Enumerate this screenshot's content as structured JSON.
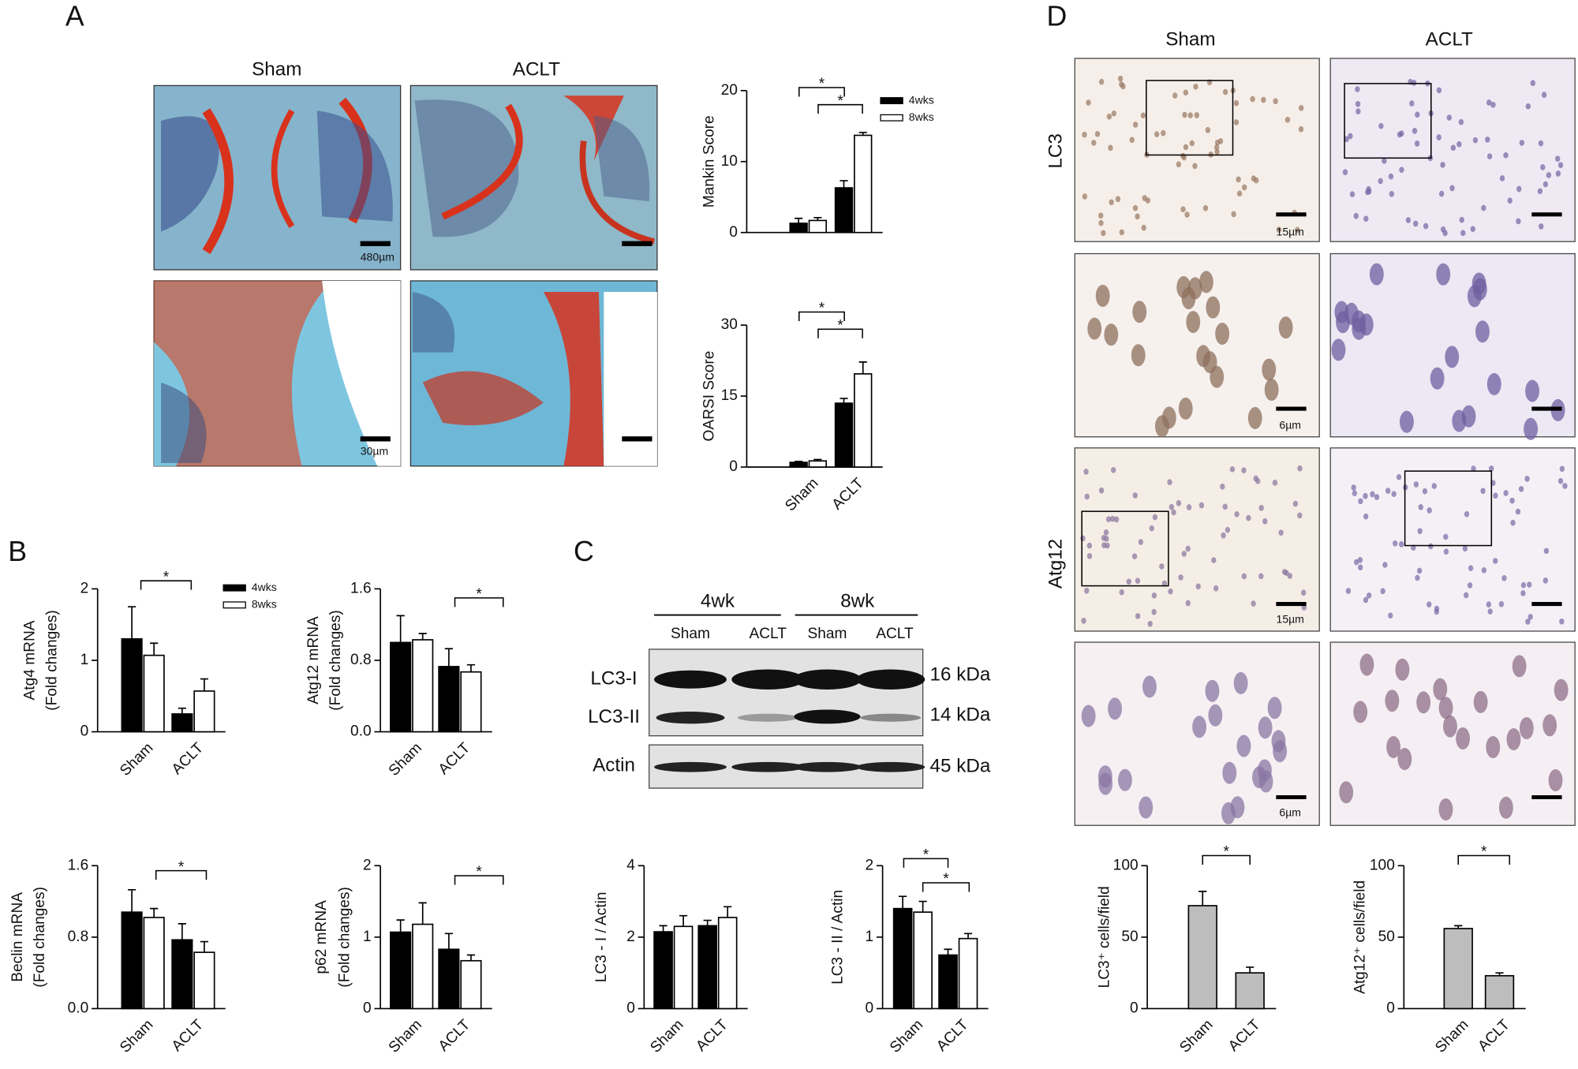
{
  "panel_labels": [
    "A",
    "B",
    "C",
    "D"
  ],
  "histology_A": {
    "columns": [
      "Sham",
      "ACLT"
    ],
    "scale_labels": [
      "480µm",
      "30µm"
    ]
  },
  "western_blot": {
    "time_points": [
      "4wk",
      "8wk"
    ],
    "lanes": [
      "Sham",
      "ACLT",
      "Sham",
      "ACLT"
    ],
    "bands": [
      "LC3-I",
      "LC3-II",
      "Actin"
    ],
    "sizes": [
      "16 kDa",
      "14 kDa",
      "45 kDa"
    ]
  },
  "ihc_D": {
    "columns": [
      "Sham",
      "ACLT"
    ],
    "rows": [
      "LC3",
      "Atg12"
    ],
    "scale_labels": [
      "15µm",
      "6µm",
      "15µm",
      "6µm"
    ]
  },
  "chart_data": [
    {
      "type": "bar",
      "ylabel": "Mankin Score",
      "categories": [
        null,
        null
      ],
      "legend": "upper right",
      "series": [
        {
          "name": "4wks",
          "color": "#000000",
          "values": [
            1.3,
            6.3
          ],
          "errors": [
            0.7,
            1.0
          ]
        },
        {
          "name": "8wks",
          "color": "#ffffff",
          "values": [
            1.7,
            13.7
          ],
          "errors": [
            0.4,
            0.4
          ]
        }
      ],
      "ylim": [
        0,
        20
      ],
      "yticks": [
        0,
        10,
        20
      ],
      "annotations": [
        "*",
        "*"
      ]
    },
    {
      "type": "bar",
      "ylabel": "OARSI Score",
      "categories": [
        "Sham",
        "ACLT"
      ],
      "series": [
        {
          "color": "#000000",
          "values": [
            1.0,
            13.5
          ],
          "errors": [
            0.2,
            1.0
          ]
        },
        {
          "color": "#ffffff",
          "values": [
            1.3,
            19.7
          ],
          "errors": [
            0.3,
            2.5
          ]
        }
      ],
      "ylim": [
        0,
        30
      ],
      "yticks": [
        0,
        15,
        30
      ],
      "annotations": [
        "*",
        "*"
      ]
    },
    {
      "type": "bar",
      "ylabel": [
        "Atg4 mRNA",
        "(Fold changes)"
      ],
      "categories": [
        "Sham",
        "ACLT"
      ],
      "legend": "upper right",
      "series": [
        {
          "name": "4wks",
          "color": "#000000",
          "values": [
            1.3,
            0.25
          ],
          "errors": [
            0.45,
            0.08
          ]
        },
        {
          "name": "8wks",
          "color": "#ffffff",
          "values": [
            1.07,
            0.57
          ],
          "errors": [
            0.17,
            0.17
          ]
        }
      ],
      "ylim": [
        0,
        2
      ],
      "yticks": [
        0,
        1,
        2
      ],
      "annotations": [
        "*"
      ]
    },
    {
      "type": "bar",
      "ylabel": [
        "Atg12 mRNA",
        "(Fold changes)"
      ],
      "categories": [
        "Sham",
        "ACLT"
      ],
      "series": [
        {
          "color": "#000000",
          "values": [
            1.0,
            0.73
          ],
          "errors": [
            0.3,
            0.2
          ]
        },
        {
          "color": "#ffffff",
          "values": [
            1.03,
            0.67
          ],
          "errors": [
            0.07,
            0.08
          ]
        }
      ],
      "ylim": [
        0,
        1.6
      ],
      "yticks": [
        {
          "value": 0,
          "label": "0.0"
        },
        0.8,
        1.6
      ],
      "annotations": [
        "*"
      ]
    },
    {
      "type": "bar",
      "ylabel": [
        "Beclin mRNA",
        "(Fold changes)"
      ],
      "categories": [
        "Sham",
        "ACLT"
      ],
      "series": [
        {
          "color": "#000000",
          "values": [
            1.08,
            0.77
          ],
          "errors": [
            0.25,
            0.18
          ]
        },
        {
          "color": "#ffffff",
          "values": [
            1.02,
            0.63
          ],
          "errors": [
            0.1,
            0.12
          ]
        }
      ],
      "ylim": [
        0,
        1.6
      ],
      "yticks": [
        {
          "value": 0,
          "label": "0.0"
        },
        0.8,
        1.6
      ],
      "annotations": [
        "*"
      ]
    },
    {
      "type": "bar",
      "ylabel": [
        "p62 mRNA",
        "(Fold changes)"
      ],
      "categories": [
        "Sham",
        "ACLT"
      ],
      "series": [
        {
          "color": "#000000",
          "values": [
            1.07,
            0.83
          ],
          "errors": [
            0.17,
            0.22
          ]
        },
        {
          "color": "#ffffff",
          "values": [
            1.18,
            0.67
          ],
          "errors": [
            0.3,
            0.08
          ]
        }
      ],
      "ylim": [
        0,
        2
      ],
      "yticks": [
        0,
        1,
        2
      ],
      "annotations": [
        "*"
      ]
    },
    {
      "type": "bar",
      "ylabel": "LC3 - I / Actin",
      "categories": [
        "Sham",
        "ACLT"
      ],
      "series": [
        {
          "color": "#000000",
          "values": [
            2.15,
            2.32
          ],
          "errors": [
            0.17,
            0.15
          ]
        },
        {
          "color": "#ffffff",
          "values": [
            2.3,
            2.55
          ],
          "errors": [
            0.3,
            0.3
          ]
        }
      ],
      "ylim": [
        0,
        4
      ],
      "yticks": [
        0,
        2,
        4
      ]
    },
    {
      "type": "bar",
      "ylabel": "LC3 - II / Actin",
      "categories": [
        "Sham",
        "ACLT"
      ],
      "series": [
        {
          "color": "#000000",
          "values": [
            1.4,
            0.75
          ],
          "errors": [
            0.17,
            0.08
          ]
        },
        {
          "color": "#ffffff",
          "values": [
            1.35,
            0.98
          ],
          "errors": [
            0.15,
            0.07
          ]
        }
      ],
      "ylim": [
        0,
        2
      ],
      "yticks": [
        0,
        1,
        2
      ],
      "annotations": [
        "*",
        "*"
      ]
    },
    {
      "type": "bar",
      "ylabel": "LC3⁺ cells/field",
      "categories": [
        "Sham",
        "ACLT"
      ],
      "series": [
        {
          "color": "#bdbdbd",
          "values": [
            72,
            25
          ],
          "errors": [
            10,
            4
          ]
        }
      ],
      "ylim": [
        0,
        100
      ],
      "yticks": [
        0,
        50,
        100
      ],
      "annotations": [
        "*"
      ]
    },
    {
      "type": "bar",
      "ylabel": "Atg12⁺ cells/field",
      "categories": [
        "Sham",
        "ACLT"
      ],
      "series": [
        {
          "color": "#bdbdbd",
          "values": [
            56,
            23
          ],
          "errors": [
            2,
            2
          ]
        }
      ],
      "ylim": [
        0,
        100
      ],
      "yticks": [
        0,
        50,
        100
      ],
      "annotations": [
        "*"
      ]
    }
  ]
}
